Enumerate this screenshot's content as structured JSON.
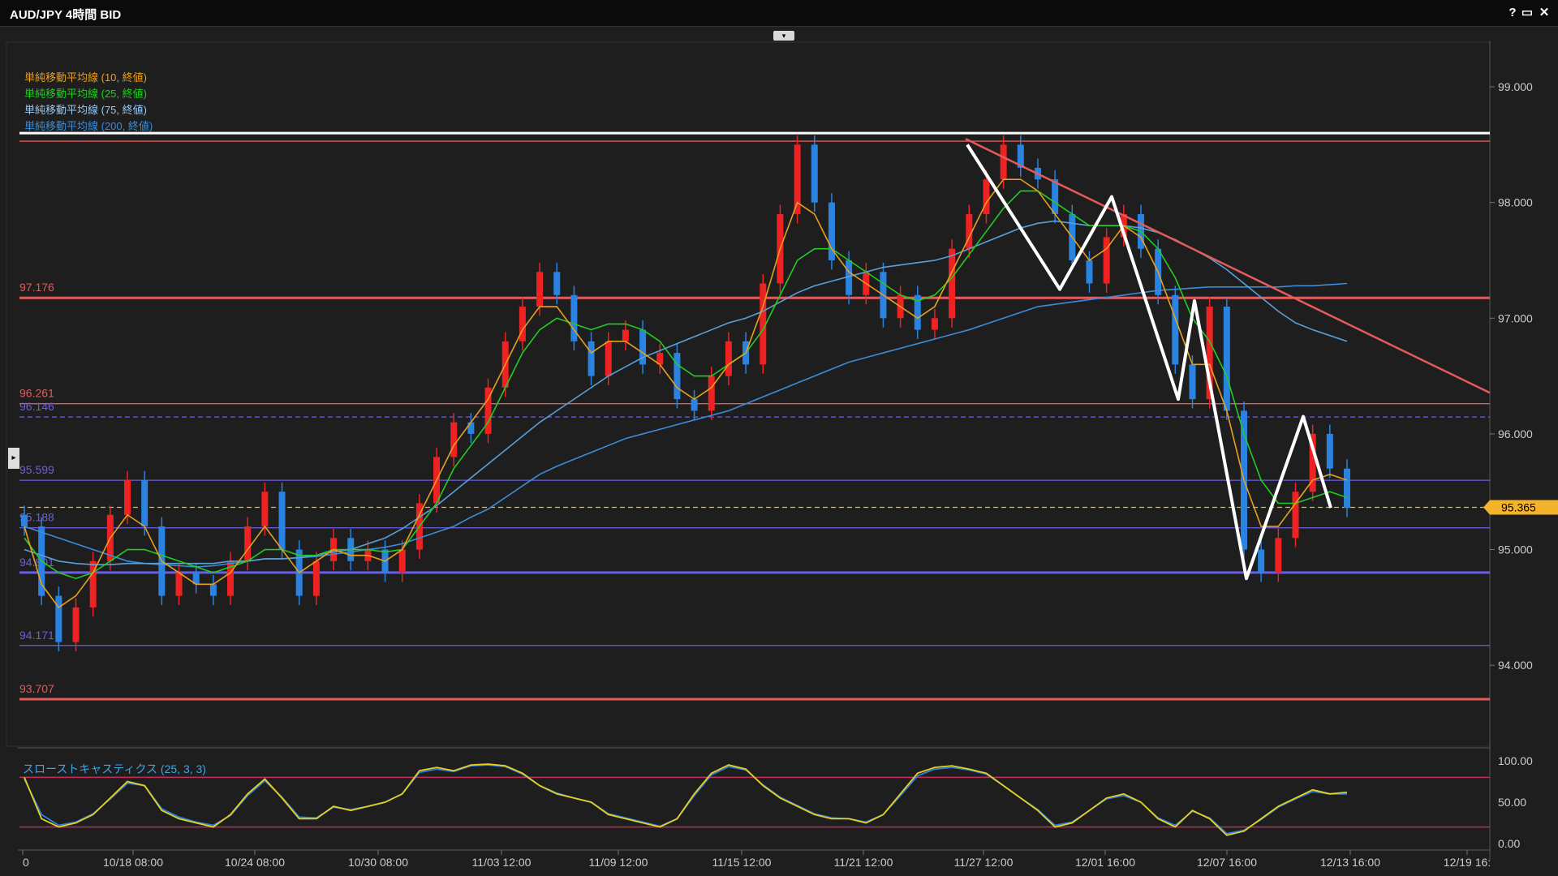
{
  "window": {
    "title": "AUD/JPY 4時間 BID",
    "buttons": {
      "help": "?",
      "maximize": "▭",
      "close": "✕"
    },
    "collapse_icon": "▾",
    "side_arrow": "▸"
  },
  "legend": [
    {
      "text": "単純移動平均線 (10, 終値)",
      "color": "#e6a020"
    },
    {
      "text": "単純移動平均線 (25, 終値)",
      "color": "#22cc22"
    },
    {
      "text": "単純移動平均線 (75, 終値)",
      "color": "#e8e8e8"
    },
    {
      "text": "単純移動平均線 (200, 終値)",
      "color": "#3c8cd8"
    }
  ],
  "indicator": {
    "label": "スローストキャスティクス (25, 3, 3)",
    "ticks": [
      "100.00",
      "50.00",
      "0.00"
    ],
    "upper_band": 80,
    "lower_band": 20
  },
  "current_price": {
    "value": 95.365,
    "label": "95.365",
    "color": "#f3b32a"
  },
  "chart_data": {
    "type": "candlestick",
    "instrument": "AUD/JPY",
    "timeframe": "4時間",
    "y_ticks": [
      "99.000",
      "98.000",
      "97.000",
      "96.000",
      "95.000",
      "94.000"
    ],
    "y_tick_values": [
      99,
      98,
      97,
      96,
      95,
      94
    ],
    "ylim": [
      93.3,
      99.4
    ],
    "x_ticks": [
      "0",
      "10/18 08:00",
      "10/24 08:00",
      "10/30 08:00",
      "11/03 12:00",
      "11/09 12:00",
      "11/15 12:00",
      "11/21 12:00",
      "11/27 12:00",
      "12/01 16:00",
      "12/07 16:00",
      "12/13 16:00",
      "12/19 16:"
    ],
    "levels": [
      {
        "value": 98.6,
        "label": "",
        "color": "#ffffff",
        "style": "solid-thick"
      },
      {
        "value": 98.53,
        "label": "",
        "color": "#e45b5b",
        "style": "solid"
      },
      {
        "value": 97.176,
        "label": "97.176",
        "color": "#e45b5b",
        "style": "solid-thick"
      },
      {
        "value": 96.261,
        "label": "96.261",
        "color": "#e45b5b",
        "style": "solid"
      },
      {
        "value": 96.146,
        "label": "96.146",
        "color": "#6a5fe0",
        "style": "dashed"
      },
      {
        "value": 95.599,
        "label": "95.599",
        "color": "#6a5fe0",
        "style": "solid"
      },
      {
        "value": 95.365,
        "label": "",
        "color": "#f3b32a",
        "style": "dashed"
      },
      {
        "value": 95.188,
        "label": "95.188",
        "color": "#6a5fe0",
        "style": "solid"
      },
      {
        "value": 94.801,
        "label": "94.801",
        "color": "#6a5fe0",
        "style": "solid-thick"
      },
      {
        "value": 94.171,
        "label": "94.171",
        "color": "#6a5fe0",
        "style": "solid"
      },
      {
        "value": 93.707,
        "label": "93.707",
        "color": "#e45b5b",
        "style": "solid-thick"
      }
    ],
    "close_series": [
      95.2,
      94.6,
      94.2,
      94.5,
      94.9,
      95.3,
      95.6,
      95.2,
      94.6,
      94.8,
      94.7,
      94.6,
      94.9,
      95.2,
      95.5,
      95.0,
      94.6,
      94.9,
      95.1,
      94.9,
      95.0,
      94.8,
      95.0,
      95.4,
      95.8,
      96.1,
      96.0,
      96.4,
      96.8,
      97.1,
      97.4,
      97.2,
      96.8,
      96.5,
      96.8,
      96.9,
      96.6,
      96.7,
      96.3,
      96.2,
      96.5,
      96.8,
      96.6,
      97.3,
      97.9,
      98.5,
      98.0,
      97.5,
      97.2,
      97.4,
      97.0,
      97.2,
      96.9,
      97.0,
      97.6,
      97.9,
      98.2,
      98.5,
      98.3,
      98.2,
      97.9,
      97.5,
      97.3,
      97.7,
      97.9,
      97.6,
      97.2,
      96.6,
      96.3,
      97.1,
      96.2,
      95.0,
      94.8,
      95.1,
      95.5,
      96.0,
      95.7,
      95.36
    ],
    "ma10": [
      95.2,
      94.7,
      94.5,
      94.6,
      94.8,
      95.1,
      95.3,
      95.2,
      94.9,
      94.8,
      94.7,
      94.7,
      94.8,
      95.0,
      95.2,
      95.0,
      94.8,
      94.9,
      95.0,
      94.95,
      94.95,
      94.9,
      95.0,
      95.3,
      95.6,
      95.9,
      96.1,
      96.3,
      96.6,
      96.9,
      97.1,
      97.1,
      96.9,
      96.7,
      96.8,
      96.8,
      96.7,
      96.6,
      96.4,
      96.3,
      96.4,
      96.6,
      96.7,
      97.1,
      97.6,
      98.0,
      97.9,
      97.6,
      97.4,
      97.3,
      97.2,
      97.1,
      97.0,
      97.1,
      97.4,
      97.7,
      98.0,
      98.2,
      98.2,
      98.1,
      97.9,
      97.7,
      97.5,
      97.6,
      97.8,
      97.7,
      97.4,
      97.0,
      96.6,
      96.6,
      96.2,
      95.6,
      95.2,
      95.2,
      95.4,
      95.6,
      95.65,
      95.6
    ],
    "ma25": [
      95.1,
      94.9,
      94.8,
      94.75,
      94.8,
      94.9,
      95.0,
      95.0,
      94.95,
      94.9,
      94.85,
      94.8,
      94.85,
      94.9,
      95.0,
      95.0,
      94.95,
      94.95,
      95.0,
      95.0,
      95.0,
      94.98,
      95.0,
      95.2,
      95.4,
      95.7,
      95.9,
      96.1,
      96.4,
      96.7,
      96.9,
      97.0,
      96.95,
      96.9,
      96.95,
      96.95,
      96.9,
      96.8,
      96.6,
      96.5,
      96.5,
      96.6,
      96.7,
      96.9,
      97.2,
      97.5,
      97.6,
      97.6,
      97.5,
      97.4,
      97.3,
      97.2,
      97.15,
      97.2,
      97.35,
      97.55,
      97.75,
      97.95,
      98.1,
      98.1,
      98.0,
      97.9,
      97.8,
      97.8,
      97.8,
      97.75,
      97.6,
      97.35,
      97.0,
      96.8,
      96.5,
      96.0,
      95.6,
      95.4,
      95.4,
      95.45,
      95.5,
      95.45
    ],
    "ma200": [
      95.2,
      95.15,
      95.1,
      95.05,
      95.0,
      94.95,
      94.9,
      94.88,
      94.87,
      94.86,
      94.85,
      94.86,
      94.88,
      94.9,
      94.92,
      94.92,
      94.93,
      94.94,
      94.96,
      94.98,
      95.0,
      95.02,
      95.05,
      95.1,
      95.15,
      95.2,
      95.28,
      95.35,
      95.45,
      95.55,
      95.65,
      95.72,
      95.78,
      95.84,
      95.9,
      95.96,
      96.0,
      96.04,
      96.08,
      96.12,
      96.16,
      96.2,
      96.26,
      96.32,
      96.38,
      96.44,
      96.5,
      96.56,
      96.62,
      96.66,
      96.7,
      96.74,
      96.78,
      96.82,
      96.86,
      96.9,
      96.95,
      97.0,
      97.05,
      97.1,
      97.12,
      97.14,
      97.16,
      97.18,
      97.2,
      97.22,
      97.24,
      97.25,
      97.26,
      97.27,
      97.27,
      97.27,
      97.27,
      97.27,
      97.28,
      97.28,
      97.29,
      97.3
    ],
    "ma75": [
      95.0,
      94.95,
      94.9,
      94.88,
      94.87,
      94.87,
      94.88,
      94.88,
      94.88,
      94.88,
      94.88,
      94.88,
      94.9,
      94.9,
      94.92,
      94.92,
      94.93,
      94.95,
      94.98,
      95.0,
      95.05,
      95.1,
      95.18,
      95.28,
      95.38,
      95.5,
      95.62,
      95.74,
      95.86,
      95.98,
      96.1,
      96.2,
      96.3,
      96.4,
      96.5,
      96.58,
      96.66,
      96.72,
      96.78,
      96.84,
      96.9,
      96.96,
      97.0,
      97.06,
      97.14,
      97.22,
      97.28,
      97.32,
      97.36,
      97.4,
      97.44,
      97.46,
      97.48,
      97.5,
      97.54,
      97.6,
      97.66,
      97.72,
      97.78,
      97.82,
      97.84,
      97.82,
      97.8,
      97.8,
      97.8,
      97.78,
      97.74,
      97.68,
      97.6,
      97.52,
      97.42,
      97.3,
      97.18,
      97.06,
      96.96,
      96.9,
      96.85,
      96.8
    ],
    "stochastic_k": [
      80,
      30,
      20,
      25,
      35,
      55,
      75,
      70,
      40,
      30,
      25,
      20,
      35,
      60,
      78,
      55,
      30,
      30,
      45,
      40,
      45,
      50,
      60,
      88,
      92,
      88,
      95,
      96,
      94,
      85,
      70,
      60,
      55,
      50,
      35,
      30,
      25,
      20,
      30,
      60,
      85,
      95,
      90,
      70,
      55,
      45,
      35,
      30,
      30,
      25,
      35,
      60,
      85,
      92,
      94,
      90,
      85,
      70,
      55,
      40,
      20,
      25,
      40,
      55,
      60,
      50,
      30,
      20,
      40,
      30,
      10,
      15,
      30,
      45,
      55,
      65,
      60,
      62
    ],
    "stochastic_d": [
      78,
      35,
      22,
      26,
      36,
      54,
      73,
      70,
      42,
      32,
      26,
      22,
      34,
      58,
      76,
      56,
      32,
      31,
      44,
      41,
      45,
      50,
      60,
      86,
      90,
      87,
      94,
      95,
      93,
      84,
      70,
      61,
      55,
      50,
      36,
      31,
      26,
      21,
      30,
      58,
      83,
      93,
      89,
      71,
      56,
      46,
      36,
      31,
      30,
      26,
      35,
      58,
      82,
      90,
      92,
      89,
      84,
      70,
      55,
      41,
      22,
      26,
      40,
      54,
      58,
      50,
      31,
      22,
      39,
      31,
      12,
      16,
      29,
      44,
      54,
      63,
      60,
      60
    ],
    "zigzag": [
      [
        98.5,
        0
      ],
      [
        97.25,
        1
      ],
      [
        98.05,
        2
      ],
      [
        96.3,
        3
      ],
      [
        97.15,
        4
      ],
      [
        94.75,
        5
      ],
      [
        96.15,
        6
      ],
      [
        95.36,
        7
      ]
    ],
    "trendline": {
      "from": 98.55,
      "to": 96.9
    }
  }
}
